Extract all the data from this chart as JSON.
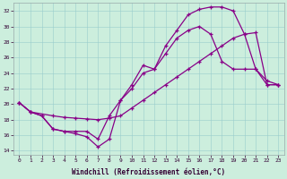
{
  "xlabel": "Windchill (Refroidissement éolien,°C)",
  "bg_color": "#cceedd",
  "line_color": "#880088",
  "xlim": [
    -0.5,
    23.5
  ],
  "ylim": [
    13.5,
    33.0
  ],
  "yticks": [
    14,
    16,
    18,
    20,
    22,
    24,
    26,
    28,
    30,
    32
  ],
  "xticks": [
    0,
    1,
    2,
    3,
    4,
    5,
    6,
    7,
    8,
    9,
    10,
    11,
    12,
    13,
    14,
    15,
    16,
    17,
    18,
    19,
    20,
    21,
    22,
    23
  ],
  "curve1_x": [
    0,
    1,
    2,
    3,
    4,
    5,
    6,
    7,
    8,
    9,
    10,
    11,
    12,
    13,
    14,
    15,
    16,
    17,
    18,
    19,
    20,
    21,
    22,
    23
  ],
  "curve1_y": [
    20.2,
    19.0,
    18.5,
    16.8,
    16.5,
    16.2,
    15.8,
    14.5,
    15.5,
    20.5,
    22.5,
    25.0,
    24.5,
    27.5,
    29.5,
    31.5,
    32.2,
    32.5,
    32.5,
    32.0,
    29.0,
    24.5,
    23.0,
    22.5
  ],
  "curve2_x": [
    0,
    1,
    3,
    4,
    5,
    6,
    7,
    8,
    9,
    10,
    11,
    12,
    13,
    14,
    15,
    16,
    17,
    18,
    19,
    20,
    21,
    22,
    23
  ],
  "curve2_y": [
    20.2,
    19.0,
    18.5,
    18.3,
    18.2,
    18.1,
    18.0,
    18.2,
    18.5,
    19.5,
    20.5,
    21.5,
    22.5,
    23.5,
    24.5,
    25.5,
    26.5,
    27.5,
    28.5,
    29.0,
    29.2,
    22.5,
    22.5
  ],
  "curve3_x": [
    0,
    1,
    2,
    3,
    4,
    5,
    6,
    7,
    8,
    9,
    10,
    11,
    12,
    13,
    14,
    15,
    16,
    17,
    18,
    19,
    20,
    21,
    22,
    23
  ],
  "curve3_y": [
    20.2,
    19.0,
    18.5,
    16.8,
    16.5,
    16.5,
    16.5,
    15.5,
    18.5,
    20.5,
    22.0,
    24.0,
    24.5,
    26.5,
    28.5,
    29.5,
    30.0,
    29.0,
    25.5,
    24.5,
    24.5,
    24.5,
    22.5,
    22.5
  ]
}
